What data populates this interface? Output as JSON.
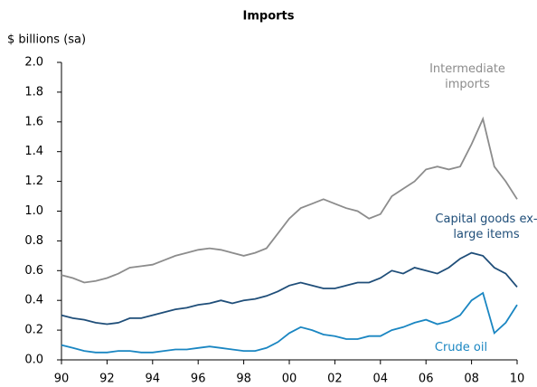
{
  "chart_data": {
    "type": "line",
    "title": "Imports",
    "y_label": "$ billions (sa)",
    "x": [
      1990,
      1990.5,
      1991,
      1991.5,
      1992,
      1992.5,
      1993,
      1993.5,
      1994,
      1994.5,
      1995,
      1995.5,
      1996,
      1996.5,
      1997,
      1997.5,
      1998,
      1998.5,
      1999,
      1999.5,
      2000,
      2000.5,
      2001,
      2001.5,
      2002,
      2002.5,
      2003,
      2003.5,
      2004,
      2004.5,
      2005,
      2005.5,
      2006,
      2006.5,
      2007,
      2007.5,
      2008,
      2008.5,
      2009,
      2009.5,
      2010
    ],
    "series": [
      {
        "name": "Intermediate imports",
        "color": "#8c8c8c",
        "values": [
          0.57,
          0.55,
          0.52,
          0.53,
          0.55,
          0.58,
          0.62,
          0.63,
          0.64,
          0.67,
          0.7,
          0.72,
          0.74,
          0.75,
          0.74,
          0.72,
          0.7,
          0.72,
          0.75,
          0.85,
          0.95,
          1.02,
          1.05,
          1.08,
          1.05,
          1.02,
          1.0,
          0.95,
          0.98,
          1.1,
          1.15,
          1.2,
          1.28,
          1.3,
          1.28,
          1.3,
          1.45,
          1.62,
          1.3,
          1.2,
          1.08
        ]
      },
      {
        "name": "Capital goods ex-large items",
        "color": "#1f4e79",
        "values": [
          0.3,
          0.28,
          0.27,
          0.25,
          0.24,
          0.25,
          0.28,
          0.28,
          0.3,
          0.32,
          0.34,
          0.35,
          0.37,
          0.38,
          0.4,
          0.38,
          0.4,
          0.41,
          0.43,
          0.46,
          0.5,
          0.52,
          0.5,
          0.48,
          0.48,
          0.5,
          0.52,
          0.52,
          0.55,
          0.6,
          0.58,
          0.62,
          0.6,
          0.58,
          0.62,
          0.68,
          0.72,
          0.7,
          0.62,
          0.58,
          0.49
        ]
      },
      {
        "name": "Crude oil",
        "color": "#1a86c2",
        "values": [
          0.1,
          0.08,
          0.06,
          0.05,
          0.05,
          0.06,
          0.06,
          0.05,
          0.05,
          0.06,
          0.07,
          0.07,
          0.08,
          0.09,
          0.08,
          0.07,
          0.06,
          0.06,
          0.08,
          0.12,
          0.18,
          0.22,
          0.2,
          0.17,
          0.16,
          0.14,
          0.14,
          0.16,
          0.16,
          0.2,
          0.22,
          0.25,
          0.27,
          0.24,
          0.26,
          0.3,
          0.4,
          0.45,
          0.18,
          0.25,
          0.37
        ]
      }
    ],
    "xlim": [
      1990,
      2010
    ],
    "xticks": [
      {
        "value": 1990,
        "label": "90"
      },
      {
        "value": 1992,
        "label": "92"
      },
      {
        "value": 1994,
        "label": "94"
      },
      {
        "value": 1996,
        "label": "96"
      },
      {
        "value": 1998,
        "label": "98"
      },
      {
        "value": 2000,
        "label": "00"
      },
      {
        "value": 2002,
        "label": "02"
      },
      {
        "value": 2004,
        "label": "04"
      },
      {
        "value": 2006,
        "label": "06"
      },
      {
        "value": 2008,
        "label": "08"
      },
      {
        "value": 2010,
        "label": "10"
      }
    ],
    "ylim": [
      0,
      2
    ],
    "yticks": [
      {
        "value": 0,
        "label": "0.0"
      },
      0.2,
      0.4,
      0.6,
      0.8,
      {
        "value": 1,
        "label": "1.0"
      },
      1.2,
      1.4,
      1.6,
      1.8,
      {
        "value": 2,
        "label": "2.0"
      }
    ],
    "grid": false
  }
}
